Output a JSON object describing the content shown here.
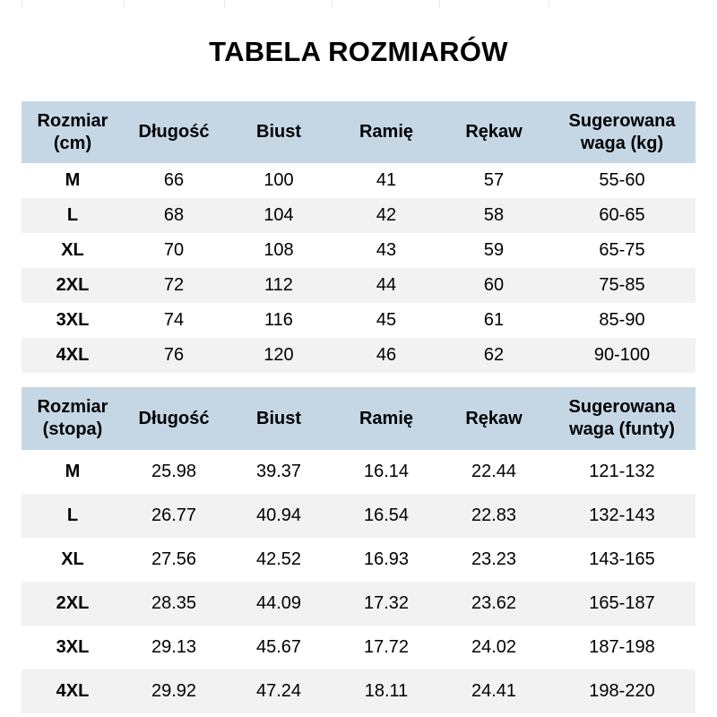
{
  "title": "TABELA ROZMIARÓW",
  "table_cm": {
    "headers": [
      "Rozmiar (cm)",
      "Długość",
      "Biust",
      "Ramię",
      "Rękaw",
      "Sugerowana waga (kg)"
    ],
    "rows": [
      [
        "M",
        "66",
        "100",
        "41",
        "57",
        "55-60"
      ],
      [
        "L",
        "68",
        "104",
        "42",
        "58",
        "60-65"
      ],
      [
        "XL",
        "70",
        "108",
        "43",
        "59",
        "65-75"
      ],
      [
        "2XL",
        "72",
        "112",
        "44",
        "60",
        "75-85"
      ],
      [
        "3XL",
        "74",
        "116",
        "45",
        "61",
        "85-90"
      ],
      [
        "4XL",
        "76",
        "120",
        "46",
        "62",
        "90-100"
      ]
    ]
  },
  "table_in": {
    "headers": [
      "Rozmiar (stopa)",
      "Długość",
      "Biust",
      "Ramię",
      "Rękaw",
      "Sugerowana waga (funty)"
    ],
    "rows": [
      [
        "M",
        "25.98",
        "39.37",
        "16.14",
        "22.44",
        "121-132"
      ],
      [
        "L",
        "26.77",
        "40.94",
        "16.54",
        "22.83",
        "132-143"
      ],
      [
        "XL",
        "27.56",
        "42.52",
        "16.93",
        "23.23",
        "143-165"
      ],
      [
        "2XL",
        "28.35",
        "44.09",
        "17.32",
        "23.62",
        "165-187"
      ],
      [
        "3XL",
        "29.13",
        "45.67",
        "17.72",
        "24.02",
        "187-198"
      ],
      [
        "4XL",
        "29.92",
        "47.24",
        "18.11",
        "24.41",
        "198-220"
      ]
    ]
  },
  "colors": {
    "header_bg": "#c5d7e5",
    "alt_row_bg": "#f2f2f2"
  }
}
